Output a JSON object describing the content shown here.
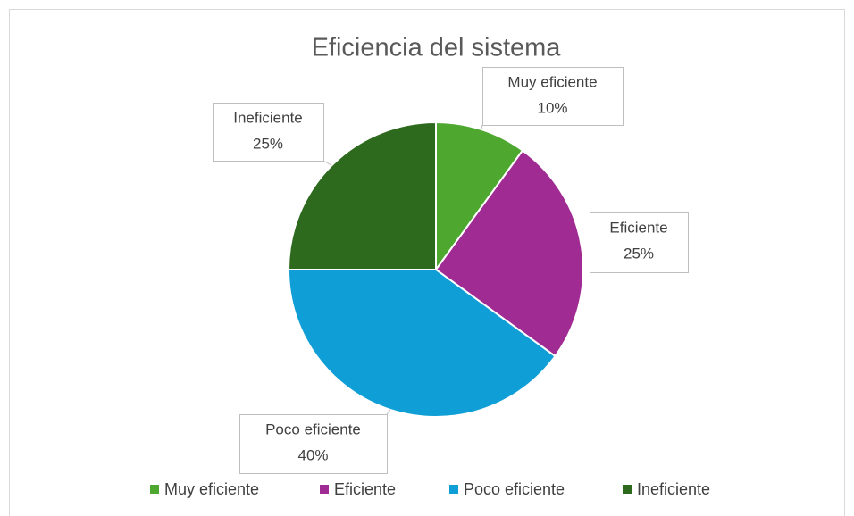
{
  "chart_data": {
    "type": "pie",
    "title": "Eficiencia del sistema",
    "categories": [
      "Muy eficiente",
      "Eficiente",
      "Poco eficiente",
      "Ineficiente"
    ],
    "values": [
      10,
      25,
      40,
      25
    ],
    "value_labels": [
      "10%",
      "25%",
      "40%",
      "25%"
    ],
    "colors": [
      "#4ea72e",
      "#a02b93",
      "#0f9ed5",
      "#2d6a1e"
    ],
    "legend": "bottom"
  }
}
